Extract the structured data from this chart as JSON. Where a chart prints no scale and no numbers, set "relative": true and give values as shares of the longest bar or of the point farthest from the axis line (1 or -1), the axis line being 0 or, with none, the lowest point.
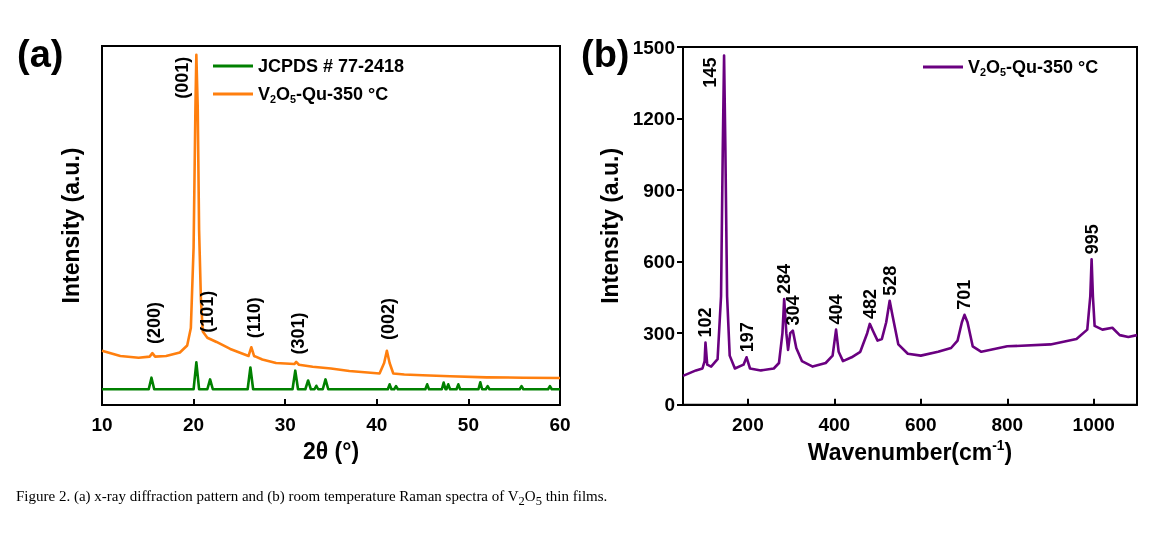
{
  "chart_data": [
    {
      "type": "line",
      "title": "(a)",
      "xlabel": "2θ (°)",
      "ylabel": "Intensity (a.u.)",
      "relative": true,
      "xlim": [
        10,
        60
      ],
      "xticks": [
        10,
        20,
        30,
        40,
        50,
        60
      ],
      "grid": false,
      "legend": "top right",
      "marker": "none",
      "series": [
        {
          "name": "JCPDS # 77-2418",
          "color": "#008000",
          "x": [
            10,
            15.1,
            15.4,
            15.7,
            20.0,
            20.3,
            20.6,
            21.5,
            21.8,
            22.1,
            25.9,
            26.2,
            26.5,
            30.8,
            31.1,
            31.4,
            32.2,
            32.5,
            32.8,
            33.2,
            33.4,
            33.6,
            34.1,
            34.4,
            34.7,
            41.2,
            41.4,
            41.6,
            41.9,
            42.1,
            42.3,
            45.3,
            45.5,
            45.7,
            47.1,
            47.3,
            47.5,
            47.6,
            47.8,
            48.0,
            48.7,
            48.9,
            49.1,
            51.1,
            51.3,
            51.5,
            51.9,
            52.1,
            52.3,
            55.6,
            55.8,
            56.0,
            58.7,
            58.9,
            59.1,
            60
          ],
          "values": [
            0.045,
            0.045,
            0.078,
            0.045,
            0.045,
            0.122,
            0.045,
            0.045,
            0.073,
            0.045,
            0.045,
            0.107,
            0.045,
            0.045,
            0.098,
            0.045,
            0.045,
            0.07,
            0.045,
            0.045,
            0.055,
            0.045,
            0.045,
            0.073,
            0.045,
            0.045,
            0.059,
            0.045,
            0.045,
            0.054,
            0.045,
            0.045,
            0.059,
            0.045,
            0.045,
            0.064,
            0.045,
            0.045,
            0.059,
            0.045,
            0.045,
            0.059,
            0.045,
            0.045,
            0.065,
            0.045,
            0.045,
            0.054,
            0.045,
            0.045,
            0.054,
            0.045,
            0.045,
            0.054,
            0.045,
            0.045
          ]
        },
        {
          "name": "V$_{2}$O$_{5}$-Qu-350 °C",
          "color": "#ff7f0e",
          "x": [
            10,
            12,
            14,
            15.2,
            15.5,
            15.8,
            17,
            18.5,
            19.3,
            19.7,
            20.0,
            20.2,
            20.3,
            20.45,
            20.6,
            20.8,
            21.0,
            21.5,
            22.5,
            24,
            25.5,
            26.0,
            26.3,
            26.6,
            27.5,
            29,
            31,
            31.2,
            31.5,
            33,
            35,
            37,
            39,
            40.3,
            40.8,
            41.1,
            41.4,
            41.8,
            43,
            45,
            48,
            52,
            56,
            60
          ],
          "values": [
            0.155,
            0.14,
            0.135,
            0.138,
            0.148,
            0.138,
            0.14,
            0.15,
            0.17,
            0.22,
            0.45,
            0.85,
            1.0,
            0.85,
            0.5,
            0.3,
            0.21,
            0.192,
            0.18,
            0.16,
            0.145,
            0.14,
            0.165,
            0.14,
            0.13,
            0.12,
            0.117,
            0.123,
            0.115,
            0.109,
            0.104,
            0.097,
            0.093,
            0.09,
            0.12,
            0.155,
            0.12,
            0.09,
            0.087,
            0.085,
            0.082,
            0.079,
            0.078,
            0.077
          ]
        }
      ],
      "annotations": [
        {
          "text": "(200)",
          "x": 15.7,
          "y": 0.16
        },
        {
          "text": "(001)",
          "x": 20.3,
          "y": 1.0
        },
        {
          "text": "(101)",
          "x": 21.5,
          "y": 0.192
        },
        {
          "text": "(110)",
          "x": 26.6,
          "y": 0.176
        },
        {
          "text": "(301)",
          "x": 31.4,
          "y": 0.13
        },
        {
          "text": "(002)",
          "x": 41.2,
          "y": 0.171
        },
        "Figure 2. (a) x-ray diffraction pattern and (b) room temperature Raman spectra of V$_{2}$O$_{5}$ thin films."
      ]
    },
    {
      "type": "line",
      "title": "(b)",
      "xlabel": "Wavenumber(cm$^{-1}$)",
      "ylabel": "Intensity (a.u.)",
      "xlim": [
        50,
        1100
      ],
      "xticks": [
        200,
        400,
        600,
        800,
        1000
      ],
      "ylim": [
        0,
        1500
      ],
      "yticks": [
        0,
        300,
        600,
        900,
        1200,
        1500
      ],
      "grid": false,
      "legend": "top right",
      "marker": "none",
      "series": [
        {
          "name": "V$_{2}$O$_{5}$-Qu-350 °C",
          "color": "#6a0080",
          "x": [
            50,
            80,
            95,
            100,
            102,
            106,
            115,
            130,
            138,
            142,
            145,
            148,
            152,
            158,
            170,
            190,
            197,
            205,
            230,
            260,
            272,
            280,
            284,
            289,
            293,
            298,
            304,
            312,
            325,
            350,
            380,
            396,
            404,
            410,
            420,
            440,
            460,
            476,
            482,
            490,
            500,
            510,
            520,
            528,
            535,
            548,
            570,
            600,
            640,
            670,
            685,
            695,
            701,
            708,
            720,
            740,
            800,
            900,
            960,
            985,
            992,
            995,
            998,
            1002,
            1020,
            1043,
            1060,
            1080,
            1100
          ],
          "values": [
            121,
            144,
            152,
            183,
            261,
            168,
            160,
            191,
            455,
            1076,
            1464,
            1076,
            455,
            206,
            152,
            168,
            199,
            152,
            144,
            152,
            175,
            300,
            443,
            300,
            230,
            300,
            311,
            238,
            183,
            160,
            175,
            206,
            315,
            222,
            183,
            199,
            222,
            300,
            339,
            307,
            269,
            276,
            346,
            436,
            370,
            253,
            214,
            206,
            222,
            238,
            269,
            346,
            377,
            346,
            245,
            222,
            245,
            253,
            276,
            315,
            455,
            610,
            455,
            331,
            315,
            323,
            292,
            284,
            292
          ]
        }
      ],
      "annotations": [
        {
          "text": "102",
          "x": 102,
          "y": 261
        },
        {
          "text": "145",
          "x": 145,
          "y": 1464
        },
        {
          "text": "197",
          "x": 197,
          "y": 199
        },
        {
          "text": "284",
          "x": 284,
          "y": 443
        },
        {
          "text": "304",
          "x": 304,
          "y": 311
        },
        {
          "text": "404",
          "x": 404,
          "y": 315
        },
        {
          "text": "482",
          "x": 482,
          "y": 339
        },
        {
          "text": "528",
          "x": 528,
          "y": 436
        },
        {
          "text": "701",
          "x": 701,
          "y": 377
        },
        {
          "text": "995",
          "x": 995,
          "y": 610
        }
      ]
    }
  ]
}
